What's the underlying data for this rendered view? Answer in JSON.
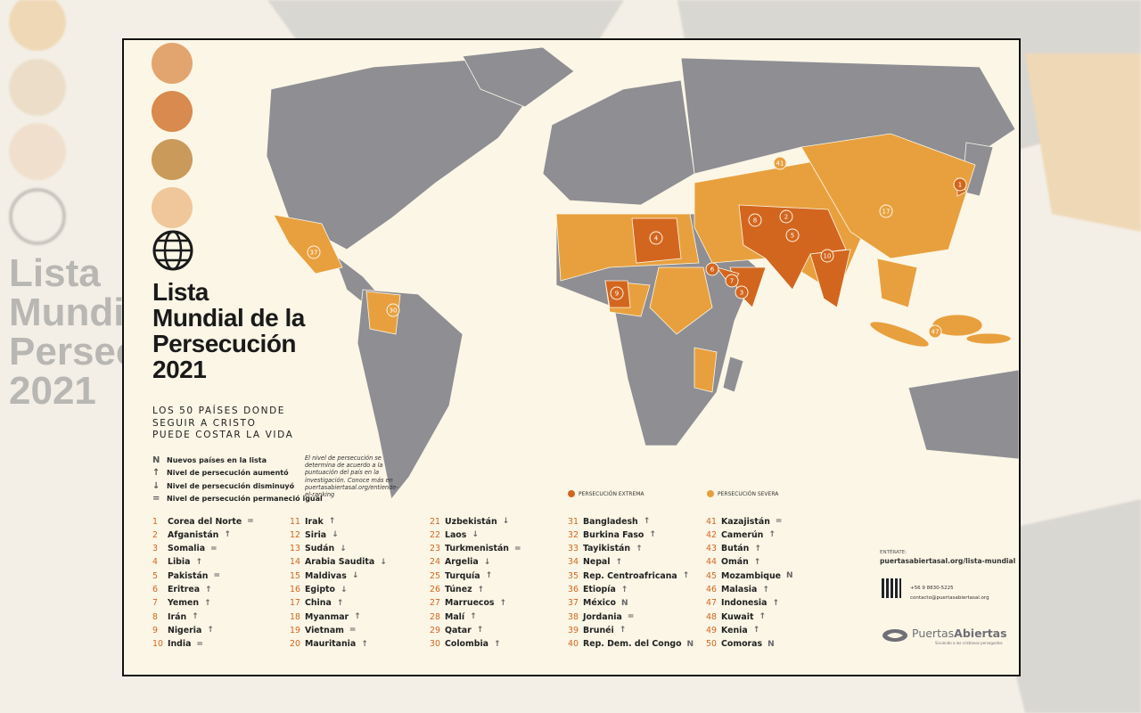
{
  "header": {
    "title_lines": [
      "Lista",
      "Mundial de la",
      "Persecución",
      "2021"
    ],
    "subtitle_lines": [
      "LOS 50 PAÍSES DONDE",
      "SEGUIR A CRISTO",
      "PUEDE COSTAR LA VIDA"
    ]
  },
  "legend": {
    "items": [
      {
        "symbol": "N",
        "label": "Nuevos países en la lista"
      },
      {
        "symbol": "↑",
        "label": "Nivel de persecución aumentó"
      },
      {
        "symbol": "↓",
        "label": "Nivel de persecución disminuyó"
      },
      {
        "symbol": "=",
        "label": "Nivel de persecución permaneció igual"
      }
    ],
    "note": "El nivel de persecución se determina de acuerdo a la puntuación del país en la investigación. Conoce más en puertasabiertasal.org/entiende-el-ranking",
    "levels": [
      {
        "label": "PERSECUCIÓN EXTREMA",
        "color": "#d3661f"
      },
      {
        "label": "PERSECUCIÓN SEVERA",
        "color": "#e8a03e"
      }
    ]
  },
  "list": {
    "items": [
      {
        "rank": 1,
        "name": "Corea del Norte",
        "trend": "="
      },
      {
        "rank": 2,
        "name": "Afganistán",
        "trend": "↑"
      },
      {
        "rank": 3,
        "name": "Somalia",
        "trend": "="
      },
      {
        "rank": 4,
        "name": "Libia",
        "trend": "↑"
      },
      {
        "rank": 5,
        "name": "Pakistán",
        "trend": "="
      },
      {
        "rank": 6,
        "name": "Eritrea",
        "trend": "↑"
      },
      {
        "rank": 7,
        "name": "Yemen",
        "trend": "↑"
      },
      {
        "rank": 8,
        "name": "Irán",
        "trend": "↑"
      },
      {
        "rank": 9,
        "name": "Nigeria",
        "trend": "↑"
      },
      {
        "rank": 10,
        "name": "India",
        "trend": "="
      },
      {
        "rank": 11,
        "name": "Irak",
        "trend": "↑"
      },
      {
        "rank": 12,
        "name": "Siria",
        "trend": "↓"
      },
      {
        "rank": 13,
        "name": "Sudán",
        "trend": "↓"
      },
      {
        "rank": 14,
        "name": "Arabia Saudita",
        "trend": "↓"
      },
      {
        "rank": 15,
        "name": "Maldivas",
        "trend": "↓"
      },
      {
        "rank": 16,
        "name": "Egipto",
        "trend": "↓"
      },
      {
        "rank": 17,
        "name": "China",
        "trend": "↑"
      },
      {
        "rank": 18,
        "name": "Myanmar",
        "trend": "↑"
      },
      {
        "rank": 19,
        "name": "Vietnam",
        "trend": "="
      },
      {
        "rank": 20,
        "name": "Mauritania",
        "trend": "↑"
      },
      {
        "rank": 21,
        "name": "Uzbekistán",
        "trend": "↓"
      },
      {
        "rank": 22,
        "name": "Laos",
        "trend": "↓"
      },
      {
        "rank": 23,
        "name": "Turkmenistán",
        "trend": "="
      },
      {
        "rank": 24,
        "name": "Argelia",
        "trend": "↓"
      },
      {
        "rank": 25,
        "name": "Turquía",
        "trend": "↑"
      },
      {
        "rank": 26,
        "name": "Túnez",
        "trend": "↑"
      },
      {
        "rank": 27,
        "name": "Marruecos",
        "trend": "↑"
      },
      {
        "rank": 28,
        "name": "Malí",
        "trend": "↑"
      },
      {
        "rank": 29,
        "name": "Qatar",
        "trend": "↑"
      },
      {
        "rank": 30,
        "name": "Colombia",
        "trend": "↑"
      },
      {
        "rank": 31,
        "name": "Bangladesh",
        "trend": "↑"
      },
      {
        "rank": 32,
        "name": "Burkina Faso",
        "trend": "↑"
      },
      {
        "rank": 33,
        "name": "Tayikistán",
        "trend": "↑"
      },
      {
        "rank": 34,
        "name": "Nepal",
        "trend": "↑"
      },
      {
        "rank": 35,
        "name": "Rep. Centroafricana",
        "trend": "↑"
      },
      {
        "rank": 36,
        "name": "Etiopía",
        "trend": "↑"
      },
      {
        "rank": 37,
        "name": "México",
        "trend": "N"
      },
      {
        "rank": 38,
        "name": "Jordania",
        "trend": "="
      },
      {
        "rank": 39,
        "name": "Brunéi",
        "trend": "↑"
      },
      {
        "rank": 40,
        "name": "Rep. Dem. del Congo",
        "trend": "N"
      },
      {
        "rank": 41,
        "name": "Kazajistán",
        "trend": "="
      },
      {
        "rank": 42,
        "name": "Camerún",
        "trend": "↑"
      },
      {
        "rank": 43,
        "name": "Bután",
        "trend": "↑"
      },
      {
        "rank": 44,
        "name": "Omán",
        "trend": "↑"
      },
      {
        "rank": 45,
        "name": "Mozambique",
        "trend": "N"
      },
      {
        "rank": 46,
        "name": "Malasia",
        "trend": "↑"
      },
      {
        "rank": 47,
        "name": "Indonesia",
        "trend": "↑"
      },
      {
        "rank": 48,
        "name": "Kuwait",
        "trend": "↑"
      },
      {
        "rank": 49,
        "name": "Kenia",
        "trend": "↑"
      },
      {
        "rank": 50,
        "name": "Comoras",
        "trend": "N"
      }
    ]
  },
  "contact": {
    "label": "ENTÉRATE:",
    "url": "puertasabiertasal.org/lista-mundial",
    "phone": "+56 9 8830-5225",
    "email": "contacto@puertasabiertasal.org"
  },
  "logo": {
    "name_a": "Puertas",
    "name_b": "Abiertas",
    "tagline": "Sirviendo a los cristianos perseguidos"
  }
}
